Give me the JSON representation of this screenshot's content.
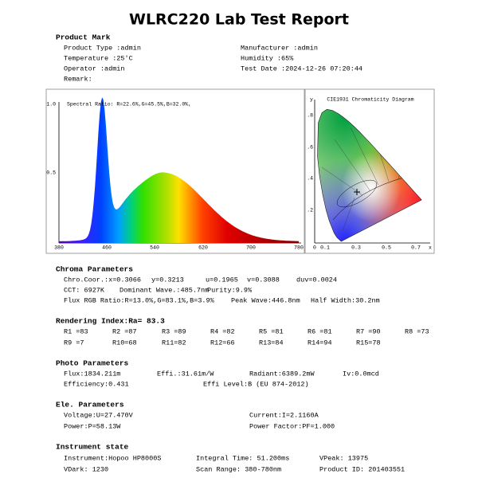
{
  "title": "WLRC220 Lab Test Report",
  "sections": [
    {
      "heading": "Product Mark",
      "rows": [
        [
          "Product Type :admin",
          "Manufacturer :admin"
        ],
        [
          "Temperature :25'C",
          "Humidity :65%"
        ],
        [
          "Operator :admin",
          "Test Date :2024-12-26 07:20:44"
        ],
        [
          "Remark:"
        ]
      ]
    },
    {
      "heading": "Chroma Parameters",
      "rows": [
        [
          "Chro.Coor.:x=0.3066",
          "y=0.3213",
          "u=0.1965",
          "v=0.3088",
          "duv=0.0024"
        ],
        [
          "CCT: 6927K",
          "Dominant Wave.:485.7nm",
          "Purity:9.9%"
        ],
        [
          "Flux RGB Ratio:R=13.0%,G=83.1%,B=3.9%",
          "Peak Wave:446.8nm",
          "Half Width:30.2nm"
        ]
      ]
    },
    {
      "heading": "Rendering Index:Ra= 83.3",
      "rows": [
        [
          "R1 =83",
          "R2 =87",
          "R3 =89",
          "R4 =82",
          "R5 =81",
          "R6 =81",
          "R7 =90",
          "R8 =73"
        ],
        [
          "R9 =7",
          "R10=68",
          "R11=82",
          "R12=66",
          "R13=84",
          "R14=94",
          "R15=78"
        ]
      ]
    },
    {
      "heading": "Photo Parameters",
      "rows": [
        [
          "Flux:1834.211m",
          "Effi.:31.61m/W",
          "Radiant:6389.2mW",
          "Iv:0.0mcd"
        ],
        [
          "Efficiency:0.431",
          "Effi Level:B (EU 874-2012)"
        ]
      ]
    },
    {
      "heading": "Ele. Parameters",
      "rows": [
        [
          "Voltage:U=27.470V",
          "Current:I=2.1160A"
        ],
        [
          "Power:P=58.13W",
          "Power Factor:PF=1.000"
        ]
      ]
    },
    {
      "heading": "Instrument state",
      "rows": [
        [
          "Instrument:Hopoo HP8000S",
          "Integral Time: 51.200ms",
          "VPeak: 13975"
        ],
        [
          "VDark: 1230",
          "Scan Range: 380-780nm",
          "Product ID: 201403551"
        ]
      ]
    }
  ],
  "spectrum": {
    "label": "Spectral Ratio: R=22.6%,G=45.5%,B=32.0%,",
    "yticks": [
      "1.0",
      "0.5"
    ],
    "xticks": [
      "380",
      "460",
      "540",
      "620",
      "700",
      "780"
    ]
  },
  "cie": {
    "title": "CIE1931 Chromaticity Diagram",
    "y_label": "y",
    "x_label": "x",
    "yticks": [
      ".8",
      ".6",
      ".4",
      ".2"
    ],
    "xticks": [
      "0",
      "0.1",
      "0.3",
      "0.5",
      "0.7"
    ]
  }
}
